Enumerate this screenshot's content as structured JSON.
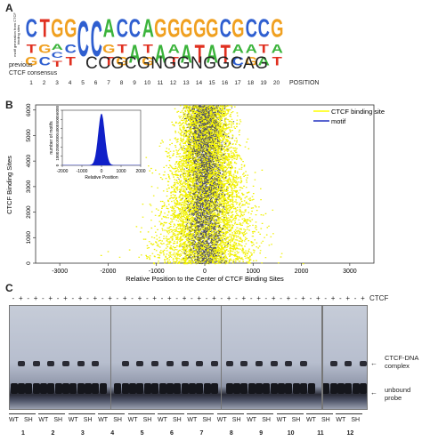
{
  "panel_a": {
    "label": "A",
    "logo_side_label": "motif generation from CTCF binding sites",
    "previous_label": "previous",
    "consensus_label": "CTCF consensus",
    "consensus_sequence": "CCGCGNGGNGGCAG",
    "positions": [
      "1",
      "2",
      "3",
      "4",
      "5",
      "6",
      "7",
      "8",
      "9",
      "10",
      "11",
      "12",
      "13",
      "14",
      "15",
      "16",
      "17",
      "18",
      "19",
      "20"
    ],
    "position_label": "POSITION",
    "logo_columns": [
      [
        "C",
        "T",
        "G"
      ],
      [
        "T",
        "G",
        "C"
      ],
      [
        "G",
        "A",
        "C",
        "T"
      ],
      [
        "G",
        "C",
        "T"
      ],
      [
        "C"
      ],
      [
        "C"
      ],
      [
        "A",
        "G",
        "T"
      ],
      [
        "C",
        "T",
        "G"
      ],
      [
        "C",
        "A"
      ],
      [
        "A",
        "T",
        "G"
      ],
      [
        "G",
        "A"
      ],
      [
        "G",
        "A",
        "T"
      ],
      [
        "G",
        "A"
      ],
      [
        "G",
        "T"
      ],
      [
        "G",
        "A"
      ],
      [
        "C",
        "T"
      ],
      [
        "G",
        "A",
        "C"
      ],
      [
        "C",
        "A",
        "G"
      ],
      [
        "C",
        "T",
        "A"
      ],
      [
        "G",
        "A",
        "T"
      ]
    ],
    "letter_colors": {
      "A": "#3cb43c",
      "C": "#2f5fd0",
      "G": "#f0a020",
      "T": "#e03020"
    }
  },
  "panel_b": {
    "label": "B",
    "chart_data": [
      {
        "type": "scatter",
        "ylabel": "CTCF Binding Sites",
        "xlabel": "Relative Position to the Center of CTCF Binding Sites",
        "xlim": [
          -3500,
          3500
        ],
        "ylim": [
          0,
          6200
        ],
        "x_ticks": [
          "-3000",
          "-2000",
          "-1000",
          "0",
          "1000",
          "2000",
          "3000"
        ],
        "y_ticks": [
          "0",
          "1000",
          "2000",
          "3000",
          "4000",
          "5000",
          "6000"
        ],
        "legend": "top-right",
        "series": [
          {
            "name": "CTCF binding site",
            "color": "#ffff00"
          },
          {
            "name": "motif",
            "color": "#2030c0"
          }
        ]
      },
      {
        "type": "area",
        "ylabel": "number of motifs",
        "xlabel": "Relative Position",
        "xlim": [
          -2000,
          2000
        ],
        "ylim": [
          0,
          6000
        ],
        "x_ticks": [
          "-2000",
          "-1000",
          "0",
          "1000",
          "2000"
        ],
        "y_ticks": [
          "0",
          "1000",
          "2000",
          "3000",
          "4000",
          "5000",
          "6000"
        ],
        "color": "#1020c8"
      }
    ]
  },
  "panel_c": {
    "label": "C",
    "ctcf_label": "CTCF",
    "lane_signs": [
      "-",
      "+",
      "-",
      "+",
      "-",
      "+",
      "-",
      "+",
      "-",
      "+",
      "-",
      "+",
      "-",
      "+",
      "-",
      "+",
      "-",
      "+",
      "-",
      "+",
      "-",
      "+",
      "-",
      "+",
      "-",
      "+",
      "-",
      "+",
      "-",
      "+",
      "-",
      "+",
      "-",
      "+",
      "-",
      "+",
      "-",
      "+",
      "-",
      "+",
      "-",
      "+",
      "-",
      "+",
      "-",
      "+",
      "-",
      "+"
    ],
    "annotation_complex": "CTCF-DNA complex",
    "annotation_probe": "unbound probe",
    "wt": "WT",
    "sh": "SH",
    "lane_numbers": [
      "1",
      "2",
      "3",
      "4",
      "5",
      "6",
      "7",
      "8",
      "9",
      "10",
      "11",
      "12"
    ]
  }
}
